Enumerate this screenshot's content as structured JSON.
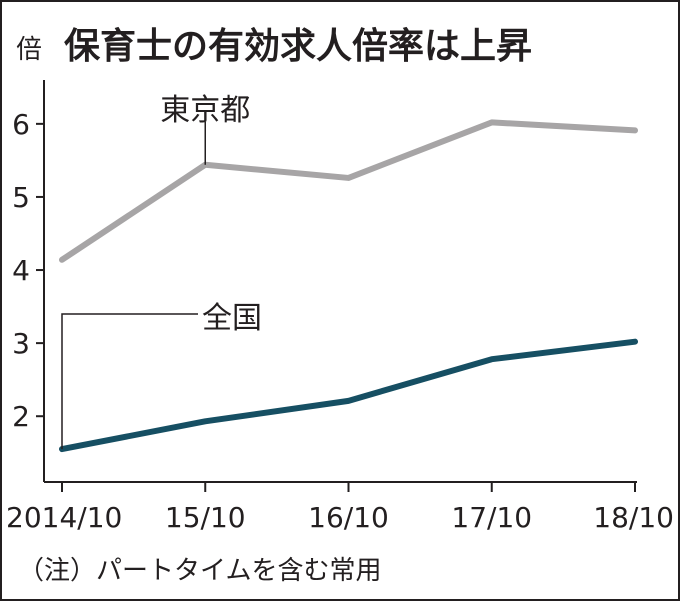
{
  "chart_data": {
    "type": "line",
    "title": "保育士の有効求人倍率は上昇",
    "unit": "倍",
    "categories": [
      "2014/10",
      "15/10",
      "16/10",
      "17/10",
      "18/10"
    ],
    "y_ticks": [
      2,
      3,
      4,
      5,
      6
    ],
    "ylim": [
      1.1,
      6.6
    ],
    "grid": false,
    "series": [
      {
        "name": "東京都",
        "values": [
          4.14,
          5.44,
          5.26,
          6.02,
          5.91
        ],
        "color": "#a7a5a6"
      },
      {
        "name": "全国",
        "values": [
          1.55,
          1.93,
          2.21,
          2.78,
          3.02
        ],
        "color": "#164f63"
      }
    ],
    "note": "（注）パートタイムを含む常用"
  }
}
